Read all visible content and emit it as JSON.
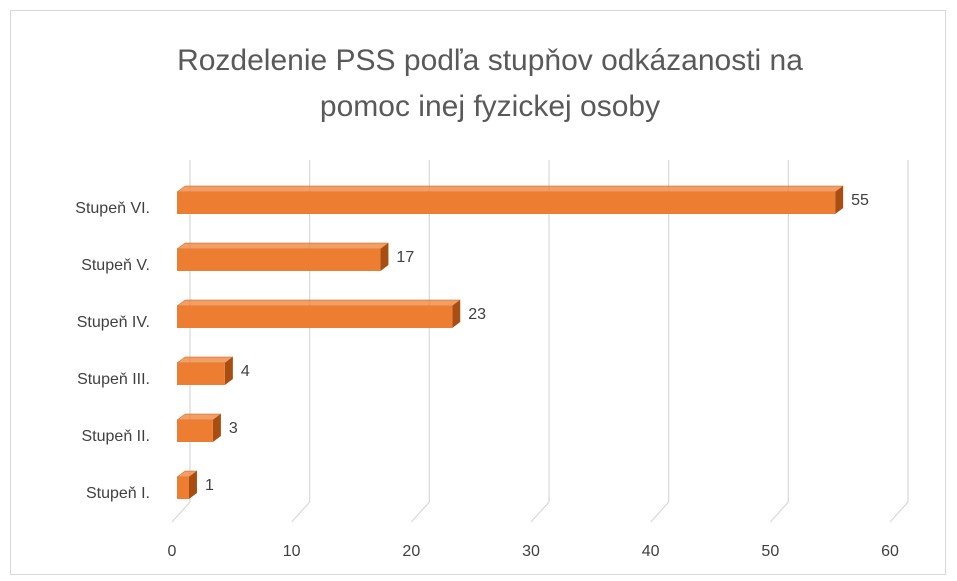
{
  "chart_data": {
    "type": "bar3d_horizontal",
    "title": "Rozdelenie PSS podľa stupňov odkázanosti na pomoc inej fyzickej osoby",
    "categories": [
      "Stupeň VI.",
      "Stupeň V.",
      "Stupeň IV.",
      "Stupeň III.",
      "Stupeň II.",
      "Stupeň I."
    ],
    "values": [
      55,
      17,
      23,
      4,
      3,
      1
    ],
    "color": "#ed7d31",
    "xlim": [
      0,
      60
    ],
    "xticks": [
      0,
      10,
      20,
      30,
      40,
      50,
      60
    ],
    "grid": true
  }
}
